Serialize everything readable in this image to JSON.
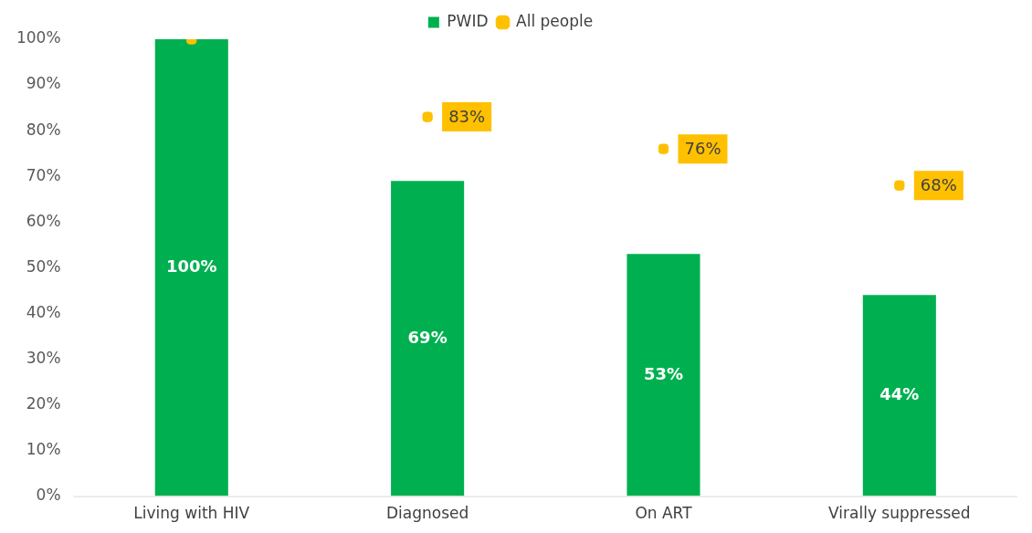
{
  "chart_data": {
    "type": "bar",
    "categories": [
      "Living with HIV",
      "Diagnosed",
      "On ART",
      "Virally suppressed"
    ],
    "series": [
      {
        "name": "PWID",
        "type": "bar",
        "color": "#00b050",
        "values": [
          100,
          69,
          53,
          44
        ],
        "value_labels": [
          "100%",
          "69%",
          "53%",
          "44%"
        ]
      },
      {
        "name": "All people",
        "type": "scatter",
        "marker": "square",
        "color": "#ffc000",
        "x": [
          "Living with HIV",
          "Diagnosed",
          "On ART",
          "Virally suppressed"
        ],
        "values": [
          100,
          83,
          76,
          68
        ],
        "value_labels": [
          null,
          "83%",
          "76%",
          "68%"
        ]
      }
    ],
    "ylim": [
      0,
      100
    ],
    "yticks": [
      {
        "value": 0,
        "label": "0%"
      },
      {
        "value": 10,
        "label": "10%"
      },
      {
        "value": 20,
        "label": "20%"
      },
      {
        "value": 30,
        "label": "30%"
      },
      {
        "value": 40,
        "label": "40%"
      },
      {
        "value": 50,
        "label": "50%"
      },
      {
        "value": 60,
        "label": "60%"
      },
      {
        "value": 70,
        "label": "70%"
      },
      {
        "value": 80,
        "label": "80%"
      },
      {
        "value": 90,
        "label": "90%"
      },
      {
        "value": 100,
        "label": "100%"
      }
    ],
    "grid": false,
    "legend": "top"
  }
}
